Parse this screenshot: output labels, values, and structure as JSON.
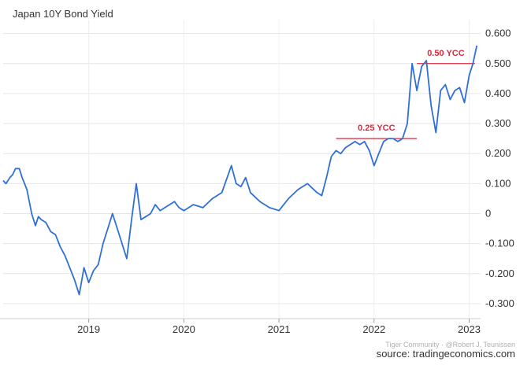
{
  "chart_data": {
    "type": "line",
    "title": "Japan 10Y Bond Yield",
    "xlabel": "",
    "ylabel": "",
    "ylim": [
      -0.35,
      0.62
    ],
    "yticks": [
      {
        "value": 0.6,
        "label": "0.600"
      },
      {
        "value": 0.5,
        "label": "0.500"
      },
      {
        "value": 0.4,
        "label": "0.400"
      },
      {
        "value": 0.3,
        "label": "0.300"
      },
      {
        "value": 0.2,
        "label": "0.200"
      },
      {
        "value": 0.1,
        "label": "0.100"
      },
      {
        "value": 0.0,
        "label": "0"
      },
      {
        "value": -0.1,
        "label": "-0.100"
      },
      {
        "value": -0.2,
        "label": "-0.200"
      },
      {
        "value": -0.3,
        "label": "-0.300"
      }
    ],
    "xlim": [
      2018.1,
      2023.12
    ],
    "xticks": [
      {
        "value": 2019.0,
        "label": "2019"
      },
      {
        "value": 2020.0,
        "label": "2020"
      },
      {
        "value": 2021.0,
        "label": "2021"
      },
      {
        "value": 2022.0,
        "label": "2022"
      },
      {
        "value": 2023.0,
        "label": "2023"
      }
    ],
    "grid": true,
    "line_color": "#2f6fd6",
    "annotation_color": "#d9293d",
    "series": [
      {
        "x": [
          2018.1,
          2018.13,
          2018.17,
          2018.2,
          2018.23,
          2018.27,
          2018.3,
          2018.35,
          2018.4,
          2018.44,
          2018.47,
          2018.5,
          2018.55,
          2018.6,
          2018.65,
          2018.7,
          2018.75,
          2018.8,
          2018.85,
          2018.9,
          2018.95,
          2019.0,
          2019.05,
          2019.1,
          2019.15,
          2019.2,
          2019.25,
          2019.3,
          2019.35,
          2019.4,
          2019.45,
          2019.5,
          2019.55,
          2019.6,
          2019.65,
          2019.7,
          2019.75,
          2019.8,
          2019.85,
          2019.9,
          2019.95,
          2020.0,
          2020.1,
          2020.2,
          2020.3,
          2020.4,
          2020.5,
          2020.55,
          2020.6,
          2020.65,
          2020.7,
          2020.8,
          2020.9,
          2021.0,
          2021.1,
          2021.2,
          2021.3,
          2021.4,
          2021.45,
          2021.5,
          2021.55,
          2021.6,
          2021.65,
          2021.7,
          2021.75,
          2021.8,
          2021.85,
          2021.9,
          2021.95,
          2022.0,
          2022.05,
          2022.1,
          2022.15,
          2022.2,
          2022.25,
          2022.3,
          2022.35,
          2022.4,
          2022.45,
          2022.5,
          2022.55,
          2022.6,
          2022.65,
          2022.7,
          2022.75,
          2022.8,
          2022.85,
          2022.9,
          2022.95,
          2023.0,
          2023.04,
          2023.08
        ],
        "y": [
          0.11,
          0.1,
          0.12,
          0.13,
          0.15,
          0.15,
          0.12,
          0.08,
          0.0,
          -0.04,
          -0.01,
          -0.02,
          -0.03,
          -0.06,
          -0.07,
          -0.11,
          -0.14,
          -0.18,
          -0.22,
          -0.27,
          -0.18,
          -0.23,
          -0.19,
          -0.17,
          -0.1,
          -0.05,
          0.0,
          -0.05,
          -0.1,
          -0.15,
          -0.02,
          0.1,
          -0.02,
          -0.01,
          0.0,
          0.03,
          0.01,
          0.02,
          0.03,
          0.04,
          0.02,
          0.01,
          0.03,
          0.02,
          0.05,
          0.07,
          0.16,
          0.1,
          0.09,
          0.12,
          0.07,
          0.04,
          0.02,
          0.01,
          0.05,
          0.08,
          0.1,
          0.07,
          0.06,
          0.12,
          0.19,
          0.21,
          0.2,
          0.22,
          0.23,
          0.24,
          0.23,
          0.24,
          0.21,
          0.16,
          0.2,
          0.24,
          0.25,
          0.25,
          0.24,
          0.25,
          0.3,
          0.5,
          0.41,
          0.49,
          0.51,
          0.36,
          0.27,
          0.41,
          0.43,
          0.38,
          0.41,
          0.42,
          0.37,
          0.46,
          0.5,
          0.56
        ]
      }
    ],
    "annotations": [
      {
        "label": "0.25 YCC",
        "level": 0.25,
        "x_start": 2021.6,
        "x_end": 2022.45
      },
      {
        "label": "0.50 YCC",
        "level": 0.5,
        "x_start": 2022.45,
        "x_end": 2023.06
      }
    ],
    "source": "source: tradingeconomics.com",
    "watermark": "Tiger Community · @Robert J. Teunissen"
  }
}
